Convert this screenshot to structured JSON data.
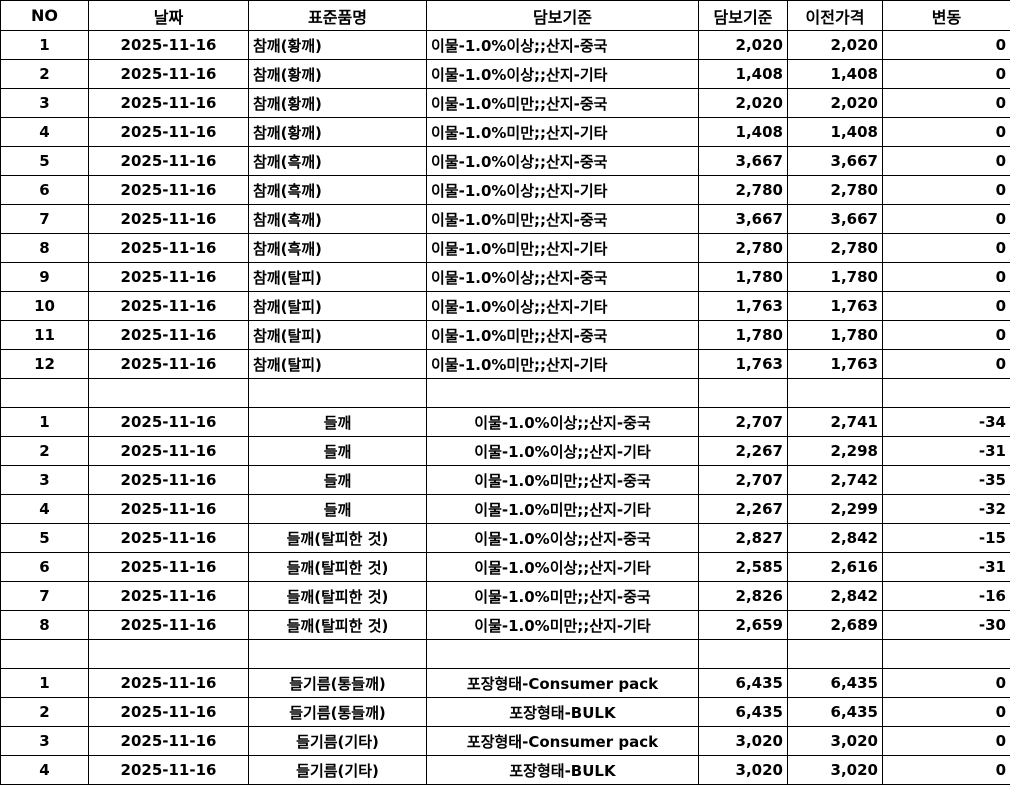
{
  "headers": [
    "NO",
    "날짜",
    "표준품명",
    "담보기준",
    "담보기준",
    "이전가격",
    "변동"
  ],
  "sections": [
    {
      "align": "left",
      "rows": [
        [
          "1",
          "2025-11-16",
          "참깨(황깨)",
          "이물-1.0%이상;;산지-중국",
          "2,020",
          "2,020",
          "0"
        ],
        [
          "2",
          "2025-11-16",
          "참깨(황깨)",
          "이물-1.0%이상;;산지-기타",
          "1,408",
          "1,408",
          "0"
        ],
        [
          "3",
          "2025-11-16",
          "참깨(황깨)",
          "이물-1.0%미만;;산지-중국",
          "2,020",
          "2,020",
          "0"
        ],
        [
          "4",
          "2025-11-16",
          "참깨(황깨)",
          "이물-1.0%미만;;산지-기타",
          "1,408",
          "1,408",
          "0"
        ],
        [
          "5",
          "2025-11-16",
          "참깨(흑깨)",
          "이물-1.0%이상;;산지-중국",
          "3,667",
          "3,667",
          "0"
        ],
        [
          "6",
          "2025-11-16",
          "참깨(흑깨)",
          "이물-1.0%이상;;산지-기타",
          "2,780",
          "2,780",
          "0"
        ],
        [
          "7",
          "2025-11-16",
          "참깨(흑깨)",
          "이물-1.0%미만;;산지-중국",
          "3,667",
          "3,667",
          "0"
        ],
        [
          "8",
          "2025-11-16",
          "참깨(흑깨)",
          "이물-1.0%미만;;산지-기타",
          "2,780",
          "2,780",
          "0"
        ],
        [
          "9",
          "2025-11-16",
          "참깨(탈피)",
          "이물-1.0%이상;;산지-중국",
          "1,780",
          "1,780",
          "0"
        ],
        [
          "10",
          "2025-11-16",
          "참깨(탈피)",
          "이물-1.0%이상;;산지-기타",
          "1,763",
          "1,763",
          "0"
        ],
        [
          "11",
          "2025-11-16",
          "참깨(탈피)",
          "이물-1.0%미만;;산지-중국",
          "1,780",
          "1,780",
          "0"
        ],
        [
          "12",
          "2025-11-16",
          "참깨(탈피)",
          "이물-1.0%미만;;산지-기타",
          "1,763",
          "1,763",
          "0"
        ]
      ]
    },
    {
      "align": "center",
      "rows": [
        [
          "1",
          "2025-11-16",
          "들깨",
          "이물-1.0%이상;;산지-중국",
          "2,707",
          "2,741",
          "-34"
        ],
        [
          "2",
          "2025-11-16",
          "들깨",
          "이물-1.0%이상;;산지-기타",
          "2,267",
          "2,298",
          "-31"
        ],
        [
          "3",
          "2025-11-16",
          "들깨",
          "이물-1.0%미만;;산지-중국",
          "2,707",
          "2,742",
          "-35"
        ],
        [
          "4",
          "2025-11-16",
          "들깨",
          "이물-1.0%미만;;산지-기타",
          "2,267",
          "2,299",
          "-32"
        ],
        [
          "5",
          "2025-11-16",
          "들깨(탈피한 것)",
          "이물-1.0%이상;;산지-중국",
          "2,827",
          "2,842",
          "-15"
        ],
        [
          "6",
          "2025-11-16",
          "들깨(탈피한 것)",
          "이물-1.0%이상;;산지-기타",
          "2,585",
          "2,616",
          "-31"
        ],
        [
          "7",
          "2025-11-16",
          "들깨(탈피한 것)",
          "이물-1.0%미만;;산지-중국",
          "2,826",
          "2,842",
          "-16"
        ],
        [
          "8",
          "2025-11-16",
          "들깨(탈피한 것)",
          "이물-1.0%미만;;산지-기타",
          "2,659",
          "2,689",
          "-30"
        ]
      ]
    },
    {
      "align": "center",
      "rows": [
        [
          "1",
          "2025-11-16",
          "들기름(통들깨)",
          "포장형태-Consumer pack",
          "6,435",
          "6,435",
          "0"
        ],
        [
          "2",
          "2025-11-16",
          "들기름(통들깨)",
          "포장형태-BULK",
          "6,435",
          "6,435",
          "0"
        ],
        [
          "3",
          "2025-11-16",
          "들기름(기타)",
          "포장형태-Consumer pack",
          "3,020",
          "3,020",
          "0"
        ],
        [
          "4",
          "2025-11-16",
          "들기름(기타)",
          "포장형태-BULK",
          "3,020",
          "3,020",
          "0"
        ]
      ]
    }
  ]
}
